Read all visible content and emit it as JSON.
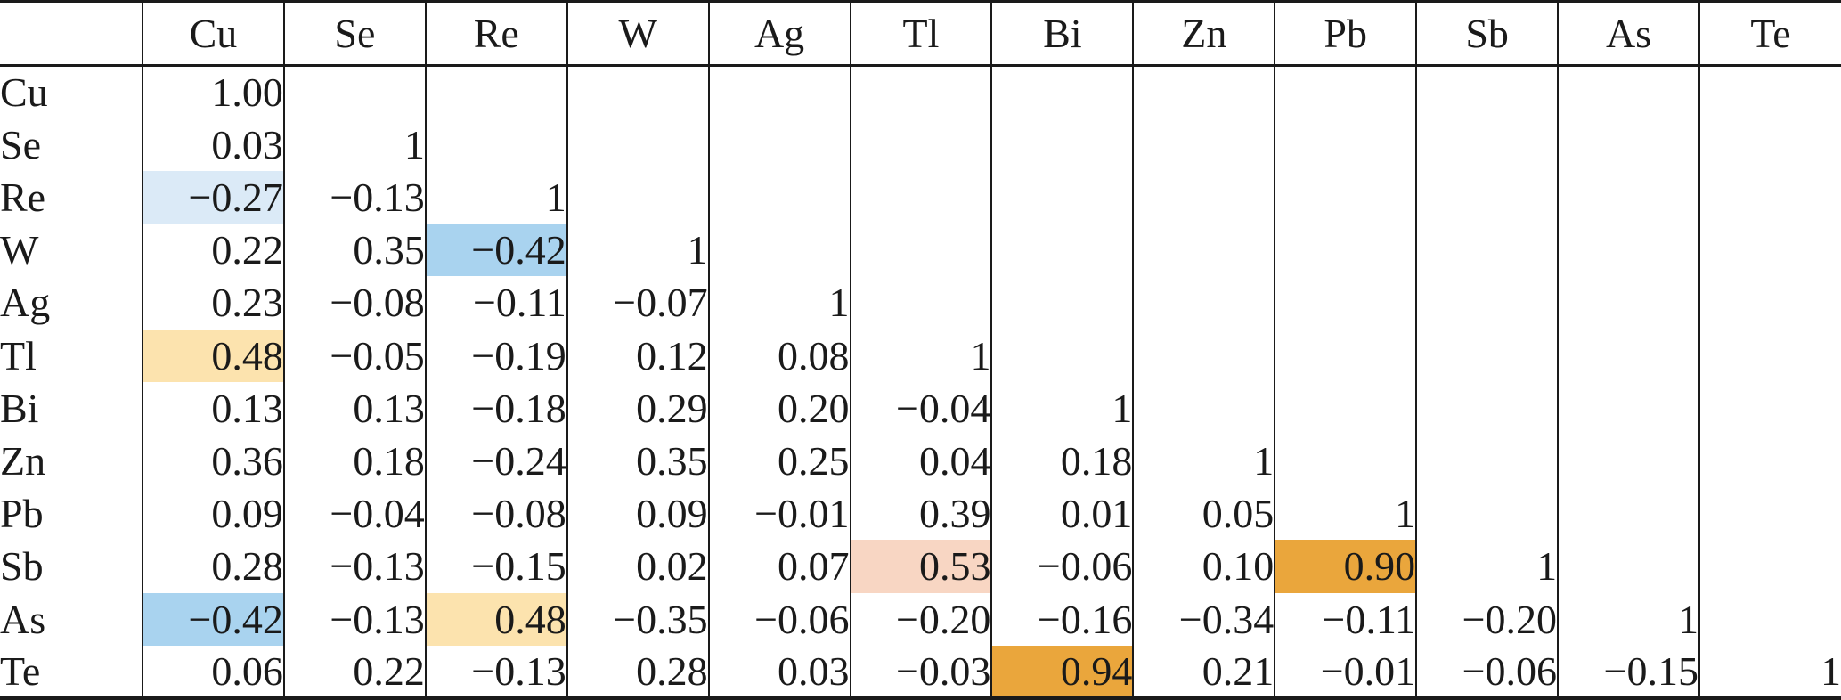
{
  "colors": {
    "line": "#1a1a1a",
    "text": "#1a1a1a",
    "light_blue": "#dbeaf7",
    "blue": "#a9d3ef",
    "cream": "#fce3ae",
    "pink": "#f8d6c3",
    "orange": "#eaa63c"
  },
  "chart_data": {
    "type": "table",
    "description": "Lower-triangular correlation matrix of elements; colored cells mark strongest correlations, bold marks significant values",
    "corner_label": "",
    "columns": [
      "Cu",
      "Se",
      "Re",
      "W",
      "Ag",
      "Tl",
      "Bi",
      "Zn",
      "Pb",
      "Sb",
      "As",
      "Te"
    ],
    "rows": [
      {
        "label": "Cu",
        "bold": false,
        "cells": [
          {
            "v": "1.00"
          }
        ]
      },
      {
        "label": "Se",
        "bold": true,
        "cells": [
          {
            "v": "0.03"
          },
          {
            "v": "1"
          }
        ]
      },
      {
        "label": "Re",
        "bold": true,
        "cells": [
          {
            "v": "−0.27",
            "b": true,
            "bg": "light_blue"
          },
          {
            "v": "−0.13"
          },
          {
            "v": "1"
          }
        ]
      },
      {
        "label": "W",
        "bold": true,
        "cells": [
          {
            "v": "0.22"
          },
          {
            "v": "0.35",
            "b": true
          },
          {
            "v": "−0.42",
            "b": true,
            "bg": "blue"
          },
          {
            "v": "1"
          }
        ]
      },
      {
        "label": "Ag",
        "bold": false,
        "cells": [
          {
            "v": "0.23"
          },
          {
            "v": "−0.08"
          },
          {
            "v": "−0.11"
          },
          {
            "v": "−0.07"
          },
          {
            "v": "1"
          }
        ]
      },
      {
        "label": "Tl",
        "bold": false,
        "cells": [
          {
            "v": "0.48",
            "b": true,
            "bg": "cream"
          },
          {
            "v": "−0.05"
          },
          {
            "v": "−0.19"
          },
          {
            "v": "0.12"
          },
          {
            "v": "0.08"
          },
          {
            "v": "1"
          }
        ]
      },
      {
        "label": "Bi",
        "bold": false,
        "cells": [
          {
            "v": "0.13"
          },
          {
            "v": "0.13"
          },
          {
            "v": "−0.18"
          },
          {
            "v": "0.29"
          },
          {
            "v": "0.20"
          },
          {
            "v": "−0.04"
          },
          {
            "v": "1"
          }
        ]
      },
      {
        "label": "Zn",
        "bold": false,
        "cells": [
          {
            "v": "0.36",
            "b": true
          },
          {
            "v": "0.18"
          },
          {
            "v": "−0.24"
          },
          {
            "v": "0.35",
            "b": true
          },
          {
            "v": "0.25"
          },
          {
            "v": "0.04"
          },
          {
            "v": "0.18"
          },
          {
            "v": "1"
          }
        ]
      },
      {
        "label": "Pb",
        "bold": false,
        "cells": [
          {
            "v": "0.09"
          },
          {
            "v": "−0.04"
          },
          {
            "v": "−0.08"
          },
          {
            "v": "0.09"
          },
          {
            "v": "−0.01"
          },
          {
            "v": "0.39"
          },
          {
            "v": "0.01"
          },
          {
            "v": "0.05"
          },
          {
            "v": "1"
          }
        ]
      },
      {
        "label": "Sb",
        "bold": false,
        "cells": [
          {
            "v": "0.28",
            "b": true
          },
          {
            "v": "−0.13"
          },
          {
            "v": "−0.15"
          },
          {
            "v": "0.02"
          },
          {
            "v": "0.07"
          },
          {
            "v": "0.53",
            "b": true,
            "bg": "pink"
          },
          {
            "v": "−0.06"
          },
          {
            "v": "0.10"
          },
          {
            "v": "0.90",
            "b": true,
            "bg": "orange"
          },
          {
            "v": "1"
          }
        ]
      },
      {
        "label": "As",
        "bold": false,
        "cells": [
          {
            "v": "−0.42",
            "b": true,
            "bg": "blue"
          },
          {
            "v": "−0.13"
          },
          {
            "v": "0.48",
            "b": true,
            "bg": "cream"
          },
          {
            "v": "−0.35",
            "b": true
          },
          {
            "v": "−0.06"
          },
          {
            "v": "−0.20"
          },
          {
            "v": "−0.16"
          },
          {
            "v": "−0.34",
            "b": true
          },
          {
            "v": "−0.11"
          },
          {
            "v": "−0.20"
          },
          {
            "v": "1"
          }
        ]
      },
      {
        "label": "Te",
        "bold": false,
        "cells": [
          {
            "v": "0.06"
          },
          {
            "v": "0.22"
          },
          {
            "v": "−0.13"
          },
          {
            "v": "0.28"
          },
          {
            "v": "0.03"
          },
          {
            "v": "−0.03"
          },
          {
            "v": "0.94",
            "b": true,
            "bg": "orange"
          },
          {
            "v": "0.21"
          },
          {
            "v": "−0.01"
          },
          {
            "v": "−0.06"
          },
          {
            "v": "−0.15"
          },
          {
            "v": "1"
          }
        ]
      }
    ]
  }
}
